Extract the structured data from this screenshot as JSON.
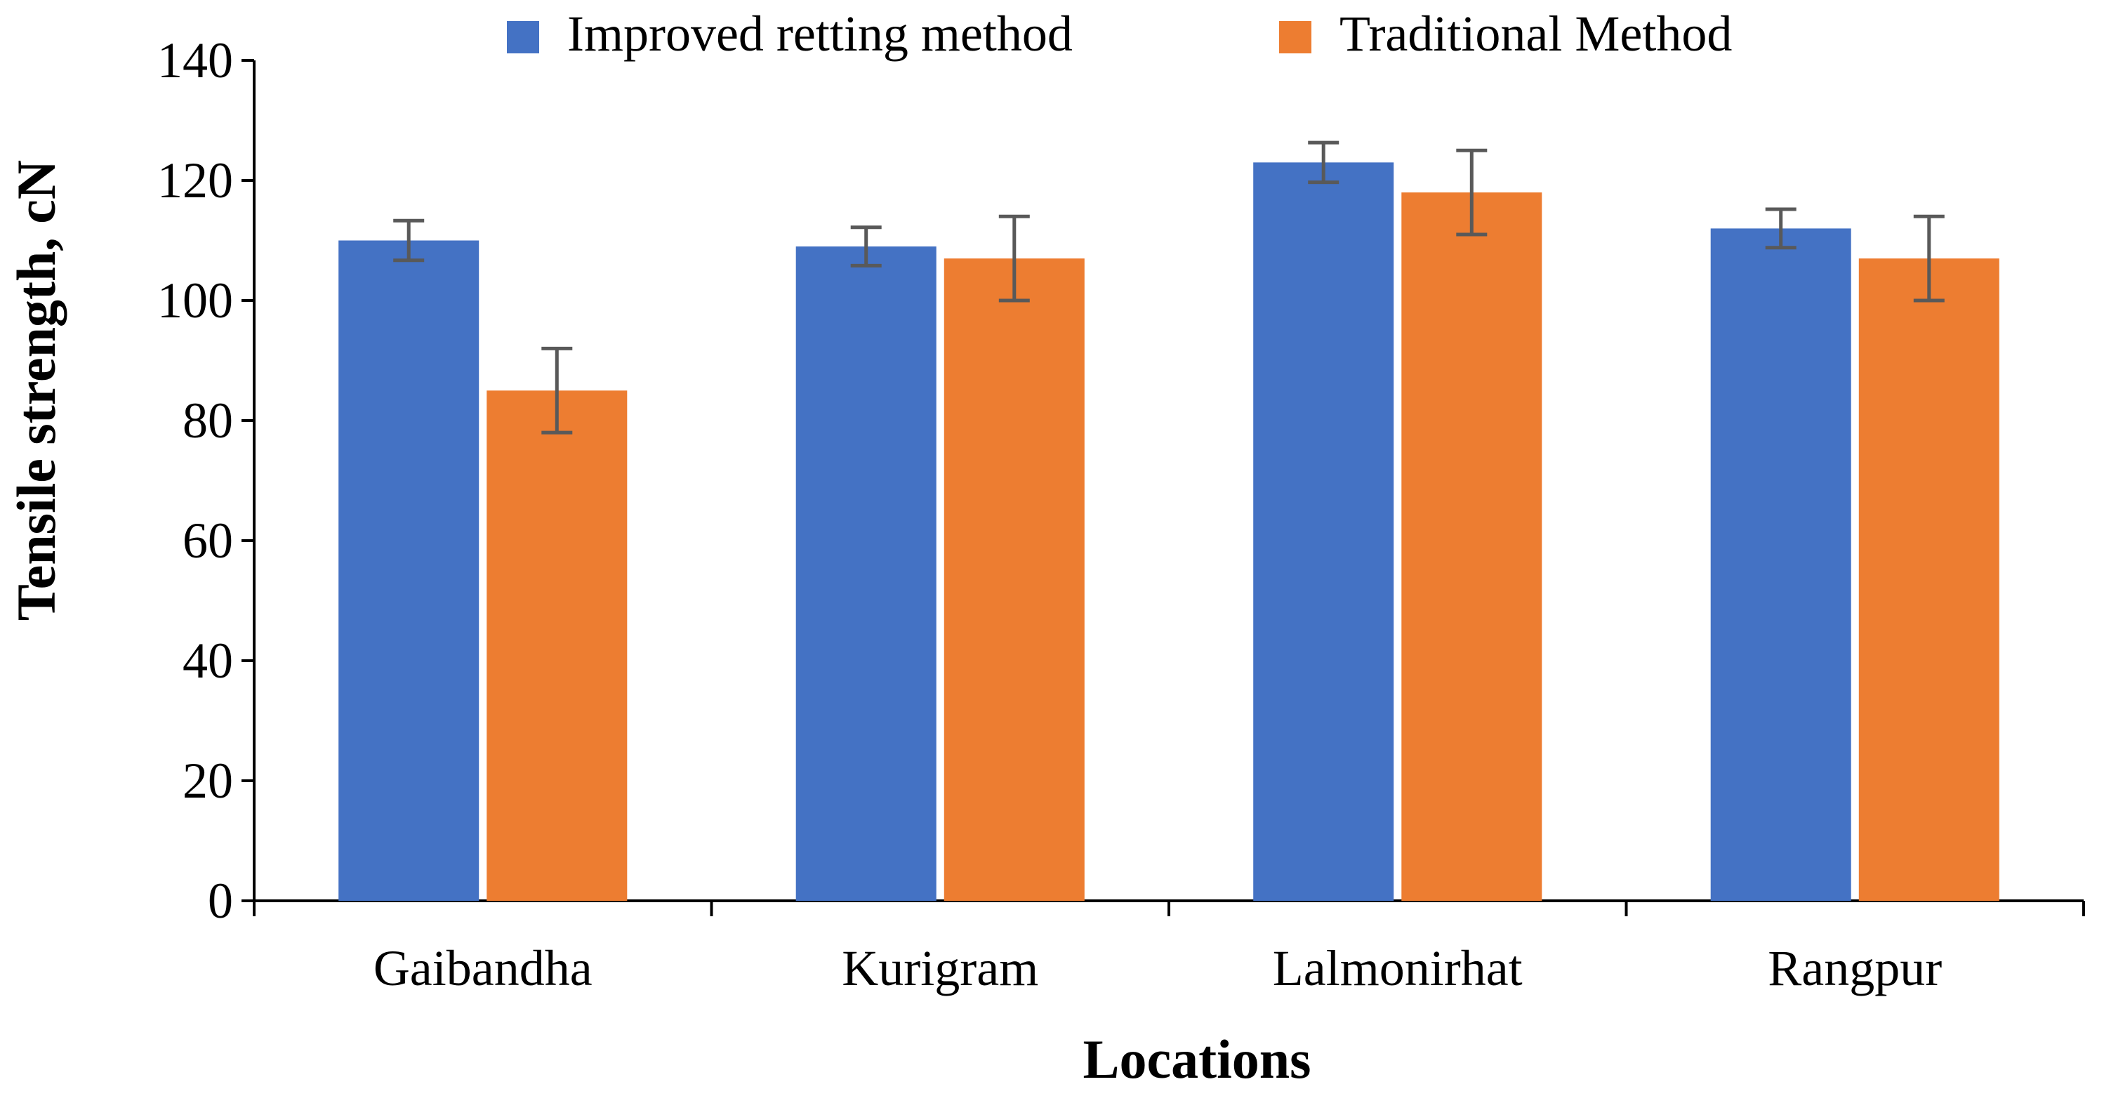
{
  "chart_data": {
    "type": "bar",
    "title": "",
    "xlabel": "Locations",
    "ylabel": "Tensile strength, cN",
    "ylim": [
      0,
      140
    ],
    "yticks": [
      0,
      20,
      40,
      60,
      80,
      100,
      120,
      140
    ],
    "grid": false,
    "legend_position": "top-center",
    "categories": [
      "Gaibandha",
      "Kurigram",
      "Lalmonirhat",
      "Rangpur"
    ],
    "series": [
      {
        "name": "Improved retting method",
        "color": "#4472C4",
        "values": [
          110,
          109,
          123,
          112
        ],
        "errors": [
          3.3,
          3.2,
          3.3,
          3.2
        ]
      },
      {
        "name": "Traditional Method",
        "color": "#ED7D31",
        "values": [
          85,
          107,
          118,
          107
        ],
        "errors": [
          7,
          7,
          7,
          7
        ]
      }
    ],
    "error_bar_color": "#595959"
  }
}
